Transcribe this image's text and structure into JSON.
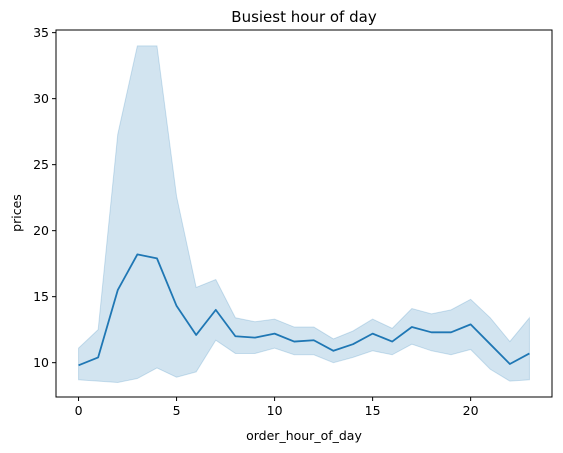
{
  "chart_data": {
    "type": "line",
    "title": "Busiest hour of day",
    "xlabel": "order_hour_of_day",
    "ylabel": "prices",
    "xlim": [
      -1.15,
      24.15
    ],
    "ylim": [
      7.4,
      35.2
    ],
    "xticks": [
      0,
      5,
      10,
      15,
      20
    ],
    "yticks": [
      10,
      15,
      20,
      25,
      30,
      35
    ],
    "grid": false,
    "legend": "none",
    "series": [
      {
        "x": [
          0,
          1,
          2,
          3,
          4,
          5,
          6,
          7,
          8,
          9,
          10,
          11,
          12,
          13,
          14,
          15,
          16,
          17,
          18,
          19,
          20,
          21,
          22,
          23
        ],
        "values": [
          9.8,
          10.4,
          15.5,
          18.2,
          17.9,
          14.3,
          12.1,
          14.0,
          12.0,
          11.9,
          12.2,
          11.6,
          11.7,
          10.9,
          11.4,
          12.2,
          11.6,
          12.7,
          12.3,
          12.3,
          12.9,
          11.4,
          9.9,
          10.7
        ],
        "ci_lower": [
          8.7,
          8.6,
          8.5,
          8.8,
          9.6,
          8.9,
          9.3,
          11.7,
          10.7,
          10.7,
          11.1,
          10.6,
          10.6,
          10.0,
          10.4,
          10.9,
          10.6,
          11.4,
          10.9,
          10.6,
          11.0,
          9.5,
          8.6,
          8.7
        ],
        "ci_upper": [
          11.1,
          12.5,
          27.3,
          34.0,
          34.0,
          22.6,
          15.7,
          16.3,
          13.4,
          13.1,
          13.3,
          12.7,
          12.7,
          11.8,
          12.4,
          13.3,
          12.6,
          14.1,
          13.7,
          14.0,
          14.8,
          13.4,
          11.6,
          13.4
        ]
      }
    ],
    "colors": {
      "line": "#1f77b4",
      "band": "#1f77b4",
      "axes": "#000000"
    }
  }
}
